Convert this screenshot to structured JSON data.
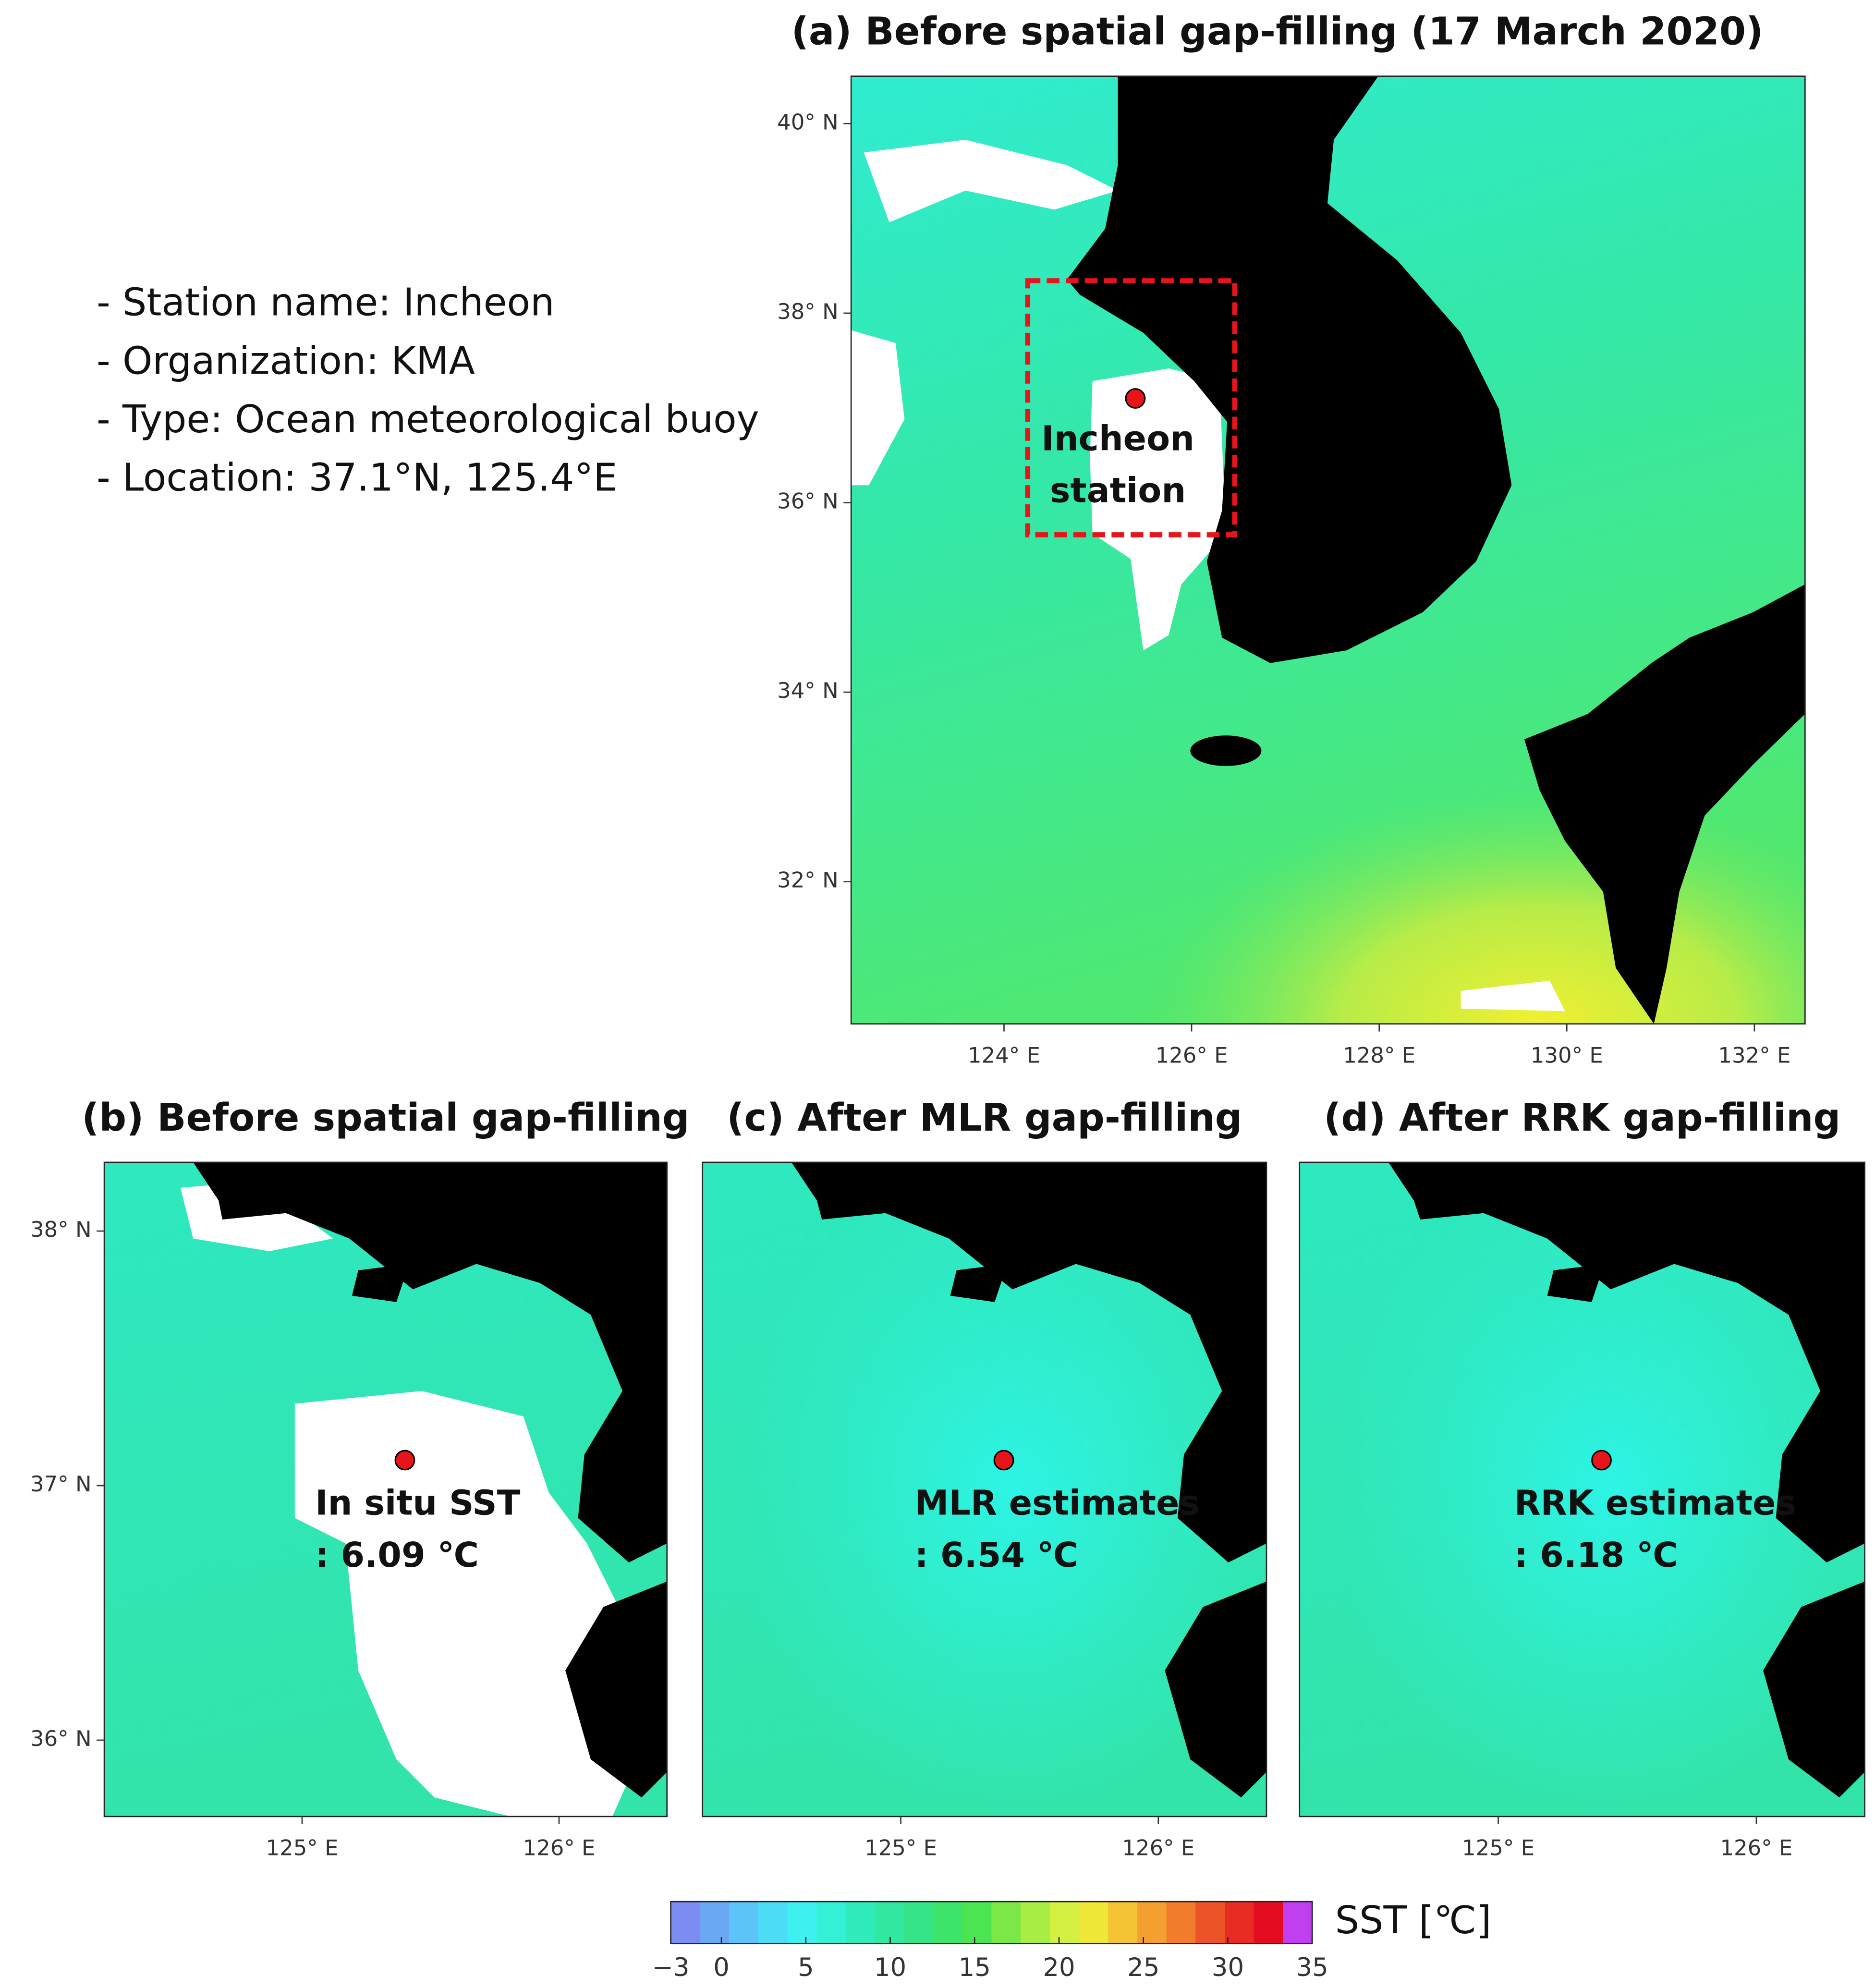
{
  "info": [
    "- Station name: Incheon",
    "- Organization: KMA",
    "- Type: Ocean meteorological buoy",
    "- Location: 37.1°N, 125.4°E"
  ],
  "station": {
    "lat": 37.1,
    "lon": 125.4
  },
  "panels": [
    {
      "title": "(a) Before spatial gap-filling (17 March 2020)",
      "xlim": [
        122.37,
        132.54
      ],
      "ylim": [
        30.5,
        40.5
      ],
      "xticks": [
        {
          "value": 124,
          "label": "124° E"
        },
        {
          "value": 126,
          "label": "126° E"
        },
        {
          "value": 128,
          "label": "128° E"
        },
        {
          "value": 130,
          "label": "130° E"
        },
        {
          "value": 132,
          "label": "132° E"
        }
      ],
      "yticks": [
        {
          "value": 32,
          "label": "32° N"
        },
        {
          "value": 34,
          "label": "34° N"
        },
        {
          "value": 36,
          "label": "36° N"
        },
        {
          "value": 38,
          "label": "38° N"
        },
        {
          "value": 40,
          "label": "40° N"
        }
      ],
      "annotation": [
        "Incheon",
        "station"
      ]
    },
    {
      "title": "(b) Before spatial gap-filling",
      "xlim": [
        124.23,
        126.42
      ],
      "ylim": [
        35.7,
        38.27
      ],
      "xticks": [
        {
          "value": 125,
          "label": "125° E"
        },
        {
          "value": 126,
          "label": "126° E"
        }
      ],
      "yticks": [
        {
          "value": 36,
          "label": "36° N"
        },
        {
          "value": 37,
          "label": "37° N"
        },
        {
          "value": 38,
          "label": "38° N"
        }
      ],
      "annotation": [
        "In situ SST",
        ": 6.09 ℃"
      ]
    },
    {
      "title": "(c) After MLR gap-filling",
      "xlim": [
        124.23,
        126.42
      ],
      "ylim": [
        35.7,
        38.27
      ],
      "xticks": [
        {
          "value": 125,
          "label": "125° E"
        },
        {
          "value": 126,
          "label": "126° E"
        }
      ],
      "annotation": [
        "MLR estimates",
        ": 6.54 ℃"
      ]
    },
    {
      "title": "(d) After RRK gap-filling",
      "xlim": [
        124.23,
        126.42
      ],
      "ylim": [
        35.7,
        38.27
      ],
      "xticks": [
        {
          "value": 125,
          "label": "125° E"
        },
        {
          "value": 126,
          "label": "126° E"
        }
      ],
      "annotation": [
        "RRK estimates",
        ": 6.18 ℃"
      ]
    }
  ],
  "colorbar": {
    "label": "SST [℃]",
    "lim": [
      -3,
      35
    ],
    "ticks": [
      {
        "value": -3,
        "label": "−3"
      },
      0,
      5,
      10,
      15,
      20,
      25,
      30,
      35
    ],
    "colors": [
      "#7c8cf0",
      "#6aa8f4",
      "#5cc4f6",
      "#4ddcf6",
      "#3ef0f0",
      "#34f0d6",
      "#30ecbc",
      "#30e8a0",
      "#34e486",
      "#3ce46a",
      "#4ce450",
      "#7ce848",
      "#a8ec44",
      "#d4f040",
      "#f0e838",
      "#f4c434",
      "#f4a030",
      "#f07c2c",
      "#ec5428",
      "#e82c24",
      "#e40c20",
      "#c040f0"
    ]
  }
}
